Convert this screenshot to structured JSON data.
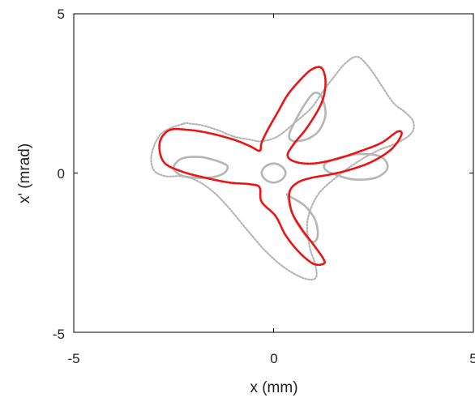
{
  "chart_data": {
    "type": "scatter",
    "title": "",
    "xlabel": "x (mm)",
    "ylabel": "x' (mrad)",
    "xlim": [
      -5,
      5
    ],
    "ylim": [
      -5,
      5
    ],
    "xticks": [
      "-5",
      "0",
      "5"
    ],
    "yticks": [
      "-5",
      "0",
      "5"
    ],
    "grid": false,
    "legend": "none",
    "colors": {
      "background_orbits": "#b5b5b5",
      "highlight_orbits": "#ee1111",
      "axes": "#000000"
    },
    "series": [
      {
        "style": "dotted",
        "color": "#b5b5b5",
        "x": [
          -2.25,
          -2.1,
          -1.8,
          -1.4,
          -1.0,
          -0.6,
          -0.3,
          0.1,
          0.55,
          0.95,
          1.2,
          1.5,
          1.8,
          2.1,
          2.4,
          2.7,
          3.0,
          3.3,
          3.5,
          3.45,
          3.1,
          2.6,
          2.1,
          1.6,
          1.1,
          0.85,
          0.9,
          1.05,
          1.05,
          0.75,
          0.25,
          -0.2,
          -0.55,
          -0.85,
          -1.15,
          -1.5,
          -1.9,
          -2.3,
          -2.7,
          -3.0,
          -3.05,
          -2.8
        ],
        "y": [
          1.55,
          1.55,
          1.5,
          1.35,
          1.15,
          1.05,
          1.0,
          1.15,
          1.6,
          2.05,
          2.5,
          3.0,
          3.45,
          3.65,
          3.3,
          2.75,
          2.2,
          1.9,
          1.6,
          1.25,
          0.95,
          0.7,
          0.35,
          -0.1,
          -0.7,
          -1.5,
          -2.3,
          -2.9,
          -3.3,
          -3.3,
          -2.95,
          -2.45,
          -1.95,
          -1.5,
          -1.05,
          -0.6,
          -0.25,
          -0.1,
          -0.1,
          0.1,
          0.6,
          1.25
        ]
      },
      {
        "style": "solid",
        "color": "#b5b5b5",
        "x": [
          -0.3,
          -0.25,
          -0.15,
          0.0,
          0.15,
          0.25,
          0.3,
          0.25,
          0.15,
          0.0,
          -0.15,
          -0.25
        ],
        "y": [
          0.0,
          0.15,
          0.25,
          0.3,
          0.25,
          0.15,
          0.0,
          -0.15,
          -0.25,
          -0.3,
          -0.25,
          -0.15
        ]
      },
      {
        "style": "solid",
        "color": "#b5b5b5",
        "x": [
          0.4,
          0.55,
          0.75,
          1.0,
          1.2,
          1.3,
          1.15,
          0.9,
          0.6,
          0.42
        ],
        "y": [
          1.25,
          1.65,
          2.1,
          2.5,
          2.4,
          1.85,
          1.35,
          1.1,
          1.0,
          1.05
        ]
      },
      {
        "style": "solid",
        "color": "#b5b5b5",
        "x": [
          1.3,
          1.7,
          2.2,
          2.7,
          2.85,
          2.55,
          2.0,
          1.55,
          1.3
        ],
        "y": [
          0.3,
          0.5,
          0.6,
          0.5,
          0.15,
          -0.15,
          -0.2,
          -0.05,
          0.1
        ]
      },
      {
        "style": "solid",
        "color": "#b5b5b5",
        "x": [
          0.35,
          0.45,
          0.65,
          0.95,
          1.1,
          1.05,
          0.8,
          0.5,
          0.35
        ],
        "y": [
          -0.7,
          -1.2,
          -1.7,
          -2.15,
          -2.0,
          -1.5,
          -1.05,
          -0.8,
          -0.7
        ]
      },
      {
        "style": "solid",
        "color": "#b5b5b5",
        "x": [
          -1.25,
          -1.8,
          -2.3,
          -2.5,
          -2.25,
          -1.7,
          -1.3,
          -1.15
        ],
        "y": [
          0.3,
          0.5,
          0.45,
          0.15,
          -0.1,
          -0.15,
          -0.05,
          0.15
        ]
      },
      {
        "style": "dotted",
        "color": "#ee1111",
        "x": [
          -2.6,
          -2.1,
          -1.6,
          -1.0,
          -0.6,
          -0.35,
          -0.3,
          -0.15,
          0.1,
          0.35,
          0.65,
          0.95,
          1.2,
          1.3,
          1.2,
          0.85,
          0.5,
          0.35,
          0.55,
          1.0,
          1.6,
          2.2,
          2.7,
          3.1,
          3.2,
          2.95,
          2.45,
          1.9,
          1.4,
          0.95,
          0.6,
          0.4,
          0.45,
          0.7,
          1.0,
          1.25,
          1.25,
          1.0,
          0.65,
          0.3,
          0.05,
          -0.3,
          -0.35,
          -0.6,
          -1.1,
          -1.7,
          -2.3,
          -2.75,
          -2.85
        ],
        "y": [
          1.35,
          1.35,
          1.25,
          1.05,
          0.85,
          0.7,
          0.95,
          1.35,
          1.9,
          2.45,
          2.9,
          3.25,
          3.3,
          2.85,
          2.2,
          1.45,
          0.9,
          0.55,
          0.35,
          0.3,
          0.45,
          0.7,
          0.95,
          1.3,
          1.2,
          0.75,
          0.35,
          0.1,
          -0.05,
          -0.15,
          -0.3,
          -0.6,
          -1.2,
          -1.75,
          -2.25,
          -2.7,
          -2.85,
          -2.85,
          -2.5,
          -1.95,
          -1.35,
          -0.9,
          -0.45,
          -0.35,
          -0.3,
          -0.15,
          0.05,
          0.35,
          0.95
        ]
      }
    ]
  }
}
